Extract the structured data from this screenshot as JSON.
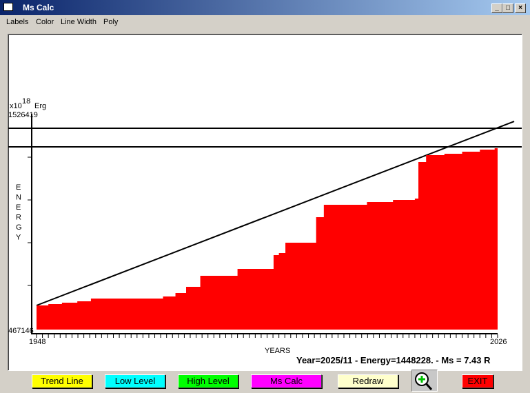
{
  "window": {
    "title": "Ms Calc",
    "controls": [
      "_",
      "□",
      "×"
    ]
  },
  "menu": [
    "Labels",
    "Color",
    "Line Width",
    "Poly"
  ],
  "chart_data": {
    "type": "area",
    "step": true,
    "y_unit_exponent": "18",
    "y_unit": "Erg",
    "y_unit_prefix": "x10",
    "ylabel": "ENERGY",
    "xlabel": "YEARS",
    "xlim": [
      1948,
      2026
    ],
    "ylim": [
      467146,
      1526419
    ],
    "x_tick_labels": [
      "1948",
      "2026"
    ],
    "y_tick_labels": [
      "467146",
      "1526419"
    ],
    "fill_color": "#ff0000",
    "steps": [
      {
        "year": 1948.0,
        "energy": 585586
      },
      {
        "year": 1950.0,
        "energy": 592354
      },
      {
        "year": 1952.3,
        "energy": 599122
      },
      {
        "year": 1954.9,
        "energy": 605890
      },
      {
        "year": 1957.2,
        "energy": 619426
      },
      {
        "year": 1969.4,
        "energy": 629578
      },
      {
        "year": 1971.5,
        "energy": 646498
      },
      {
        "year": 1973.3,
        "energy": 676954
      },
      {
        "year": 1975.7,
        "energy": 731098
      },
      {
        "year": 1982.0,
        "energy": 764938
      },
      {
        "year": 1988.1,
        "energy": 832618
      },
      {
        "year": 1989.0,
        "energy": 842770
      },
      {
        "year": 1990.1,
        "energy": 893530
      },
      {
        "year": 1995.3,
        "energy": 1018738
      },
      {
        "year": 1996.6,
        "energy": 1079650
      },
      {
        "year": 2003.9,
        "energy": 1093186
      },
      {
        "year": 2008.3,
        "energy": 1103338
      },
      {
        "year": 2012.0,
        "energy": 1110106
      },
      {
        "year": 2012.6,
        "energy": 1289458
      },
      {
        "year": 2013.9,
        "energy": 1323298
      },
      {
        "year": 2017.0,
        "energy": 1330066
      },
      {
        "year": 2020.0,
        "energy": 1340218
      },
      {
        "year": 2023.0,
        "energy": 1350370
      },
      {
        "year": 2025.5,
        "energy": 1357138
      }
    ],
    "end_year": 2026,
    "trend_line": {
      "start": {
        "year": 1948,
        "energy": 585586
      },
      "end": {
        "year": 2028.8,
        "energy": 1489114
      }
    },
    "levels": [
      {
        "name": "High Level",
        "energy": 1455274
      },
      {
        "name": "Low Level",
        "energy": 1363906
      }
    ]
  },
  "status": "Year=2025/11 - Energy=1448228. - Ms = 7.43 R",
  "buttons": [
    {
      "label": "Trend Line",
      "color": "#ffff00"
    },
    {
      "label": "Low Level",
      "color": "#00ffff"
    },
    {
      "label": "High Level",
      "color": "#00ff00"
    },
    {
      "label": "Ms Calc",
      "color": "#ff00ff"
    },
    {
      "label": "Redraw",
      "color": "#ffffcc"
    },
    {
      "label": "EXIT",
      "color": "#ff0000"
    }
  ],
  "zoom_icon": "magnifier-plus-icon"
}
